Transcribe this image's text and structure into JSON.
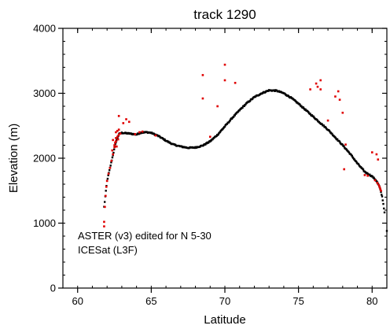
{
  "chart_data": {
    "type": "scatter",
    "title": "track 1290",
    "xlabel": "Latitude",
    "ylabel": "Elevation (m)",
    "xlim": [
      59,
      81
    ],
    "ylim": [
      0,
      4000
    ],
    "x_ticks": [
      60,
      65,
      70,
      75,
      80
    ],
    "y_ticks": [
      0,
      1000,
      2000,
      3000,
      4000
    ],
    "x_minor_step": 1,
    "y_minor_step": 200,
    "grid": false,
    "legend_position": "bottom-left",
    "legend": [
      {
        "label": "ASTER (v3) edited for N 5-30",
        "color": "#e00000"
      },
      {
        "label": "ICESat (L3F)",
        "color": "#000000"
      }
    ],
    "series": [
      {
        "name": "ICESat (L3F)",
        "color": "#000000",
        "profile": [
          [
            61.8,
            1250
          ],
          [
            61.9,
            1450
          ],
          [
            62.0,
            1650
          ],
          [
            62.2,
            1850
          ],
          [
            62.4,
            2050
          ],
          [
            62.6,
            2250
          ],
          [
            62.8,
            2370
          ],
          [
            63.0,
            2390
          ],
          [
            63.5,
            2380
          ],
          [
            64.0,
            2365
          ],
          [
            64.3,
            2395
          ],
          [
            64.7,
            2400
          ],
          [
            65.0,
            2390
          ],
          [
            65.5,
            2340
          ],
          [
            66.0,
            2270
          ],
          [
            66.5,
            2210
          ],
          [
            67.0,
            2180
          ],
          [
            67.5,
            2160
          ],
          [
            68.0,
            2165
          ],
          [
            68.5,
            2195
          ],
          [
            69.0,
            2260
          ],
          [
            69.5,
            2360
          ],
          [
            70.0,
            2490
          ],
          [
            70.5,
            2620
          ],
          [
            71.0,
            2740
          ],
          [
            71.5,
            2850
          ],
          [
            72.0,
            2940
          ],
          [
            72.5,
            3000
          ],
          [
            73.0,
            3045
          ],
          [
            73.5,
            3040
          ],
          [
            74.0,
            3000
          ],
          [
            74.5,
            2930
          ],
          [
            75.0,
            2840
          ],
          [
            75.5,
            2740
          ],
          [
            76.0,
            2640
          ],
          [
            76.5,
            2540
          ],
          [
            77.0,
            2440
          ],
          [
            77.5,
            2320
          ],
          [
            78.0,
            2200
          ],
          [
            78.5,
            2070
          ],
          [
            79.0,
            1920
          ],
          [
            79.5,
            1790
          ],
          [
            80.0,
            1720
          ],
          [
            80.3,
            1650
          ],
          [
            80.5,
            1560
          ],
          [
            80.7,
            1390
          ],
          [
            80.85,
            1150
          ]
        ],
        "extra_points": [
          [
            81.0,
            880
          ]
        ]
      },
      {
        "name": "ASTER (v3) edited for N 5-30",
        "color": "#e00000",
        "points": [
          [
            61.8,
            950
          ],
          [
            61.8,
            1020
          ],
          [
            61.85,
            1250
          ],
          [
            61.9,
            1420
          ],
          [
            61.95,
            1560
          ],
          [
            62.0,
            1650
          ],
          [
            62.1,
            1760
          ],
          [
            62.2,
            1850
          ],
          [
            62.3,
            1960
          ],
          [
            62.4,
            2060
          ],
          [
            62.5,
            2170
          ],
          [
            62.6,
            2260
          ],
          [
            62.7,
            2330
          ],
          [
            62.8,
            2360
          ],
          [
            62.9,
            2380
          ],
          [
            62.5,
            2200
          ],
          [
            62.6,
            2310
          ],
          [
            62.7,
            2420
          ],
          [
            62.8,
            2440
          ],
          [
            62.4,
            2280
          ],
          [
            62.6,
            2400
          ],
          [
            62.35,
            2120
          ],
          [
            62.55,
            2240
          ],
          [
            62.65,
            2180
          ],
          [
            62.75,
            2290
          ],
          [
            62.8,
            2650
          ],
          [
            63.1,
            2540
          ],
          [
            63.3,
            2600
          ],
          [
            63.5,
            2560
          ],
          [
            63.9,
            2370
          ],
          [
            64.2,
            2400
          ],
          [
            64.4,
            2410
          ],
          [
            65.3,
            2350
          ],
          [
            68.5,
            3280
          ],
          [
            68.5,
            2920
          ],
          [
            69.0,
            2330
          ],
          [
            69.5,
            2800
          ],
          [
            70.0,
            3440
          ],
          [
            70.0,
            3200
          ],
          [
            70.7,
            3160
          ],
          [
            75.8,
            3060
          ],
          [
            76.2,
            3150
          ],
          [
            76.3,
            3100
          ],
          [
            76.5,
            3200
          ],
          [
            76.5,
            3060
          ],
          [
            77.0,
            2580
          ],
          [
            77.5,
            2950
          ],
          [
            77.7,
            3030
          ],
          [
            77.8,
            2900
          ],
          [
            78.0,
            2700
          ],
          [
            78.2,
            2210
          ],
          [
            78.1,
            1830
          ],
          [
            79.5,
            1740
          ],
          [
            79.7,
            1730
          ],
          [
            80.0,
            2090
          ],
          [
            80.3,
            2060
          ],
          [
            80.4,
            1980
          ],
          [
            80.2,
            1660
          ],
          [
            80.35,
            1620
          ],
          [
            80.45,
            1590
          ],
          [
            80.5,
            1560
          ],
          [
            80.55,
            1530
          ],
          [
            80.6,
            1500
          ]
        ]
      }
    ]
  }
}
